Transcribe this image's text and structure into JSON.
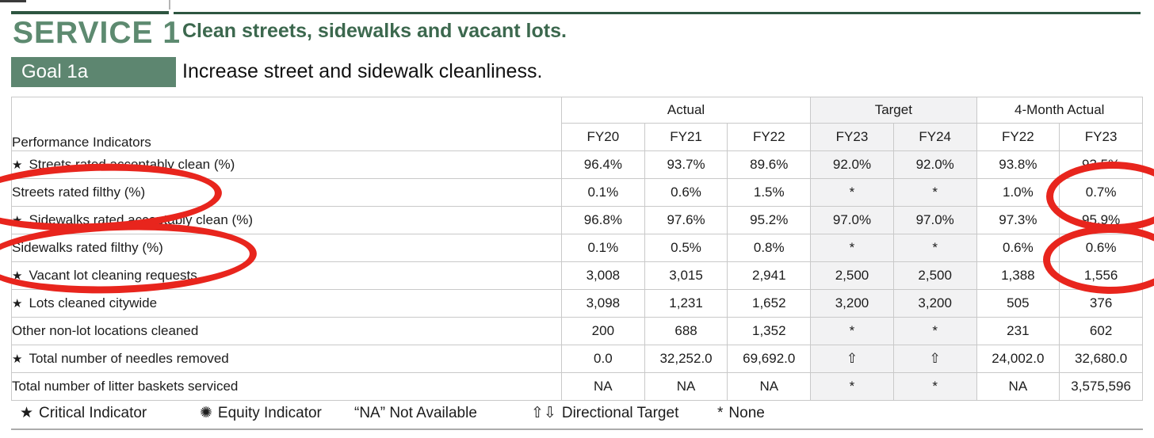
{
  "colors": {
    "green-rule": "#2d5540",
    "green-service": "#5d8a70",
    "green-title": "#3c684e",
    "green-goal-bg": "#5d8670",
    "table-border": "#c9c9c9",
    "target-bg": "#f2f2f3",
    "text": "#1c1c1c",
    "annotation-red": "#e8251d"
  },
  "header": {
    "service_label": "SERVICE 1",
    "service_title": "Clean streets, sidewalks and vacant lots.",
    "goal_label": "Goal 1a",
    "goal_title": "Increase street and sidewalk cleanliness."
  },
  "table": {
    "row_header_label": "Performance Indicators",
    "column_groups": [
      {
        "label": "Actual"
      },
      {
        "label": "Target"
      },
      {
        "label": "4-Month Actual"
      }
    ],
    "year_headers": [
      "FY20",
      "FY21",
      "FY22",
      "FY23",
      "FY24",
      "FY22",
      "FY23"
    ],
    "rows": [
      {
        "star": "★",
        "label": "Streets rated acceptably clean (%)",
        "values": [
          "96.4%",
          "93.7%",
          "89.6%",
          "92.0%",
          "92.0%",
          "93.8%",
          "93.5%"
        ]
      },
      {
        "label": "Streets rated filthy (%)",
        "circled": true,
        "values": [
          "0.1%",
          "0.6%",
          "1.5%",
          "*",
          "*",
          "1.0%",
          "0.7%"
        ]
      },
      {
        "star": "★",
        "label": "Sidewalks rated acceptably clean (%)",
        "values": [
          "96.8%",
          "97.6%",
          "95.2%",
          "97.0%",
          "97.0%",
          "97.3%",
          "95.9%"
        ]
      },
      {
        "label": "Sidewalks rated filthy (%)",
        "circled": true,
        "values": [
          "0.1%",
          "0.5%",
          "0.8%",
          "*",
          "*",
          "0.6%",
          "0.6%"
        ]
      },
      {
        "star": "★",
        "label": "Vacant lot cleaning requests",
        "values": [
          "3,008",
          "3,015",
          "2,941",
          "2,500",
          "2,500",
          "1,388",
          "1,556"
        ]
      },
      {
        "star": "★",
        "label": "Lots cleaned citywide",
        "values": [
          "3,098",
          "1,231",
          "1,652",
          "3,200",
          "3,200",
          "505",
          "376"
        ]
      },
      {
        "label": "Other non-lot locations cleaned",
        "values": [
          "200",
          "688",
          "1,352",
          "*",
          "*",
          "231",
          "602"
        ]
      },
      {
        "star": "★",
        "label": "Total number of needles removed",
        "values": [
          "0.0",
          "32,252.0",
          "69,692.0",
          "⇧",
          "⇧",
          "24,002.0",
          "32,680.0"
        ]
      },
      {
        "label": "Total number of litter baskets serviced",
        "values": [
          "NA",
          "NA",
          "NA",
          "*",
          "*",
          "NA",
          "3,575,596"
        ]
      }
    ]
  },
  "legend": {
    "critical_icon": "★",
    "critical_label": "Critical Indicator",
    "equity_icon": "✺",
    "equity_label": "Equity Indicator",
    "na_label": "“NA” Not Available",
    "directional_icon": "⇧⇩",
    "directional_label": "Directional Target",
    "none_icon": "*",
    "none_label": "None"
  },
  "annotations": {
    "note": "Four hand-drawn red ovals circle: the 'Streets rated filthy (%)' label, the 'Sidewalks rated filthy (%)' label, the FY23 4-Month Actual value 0.7%, and the FY23 4-Month Actual value 0.6%."
  }
}
